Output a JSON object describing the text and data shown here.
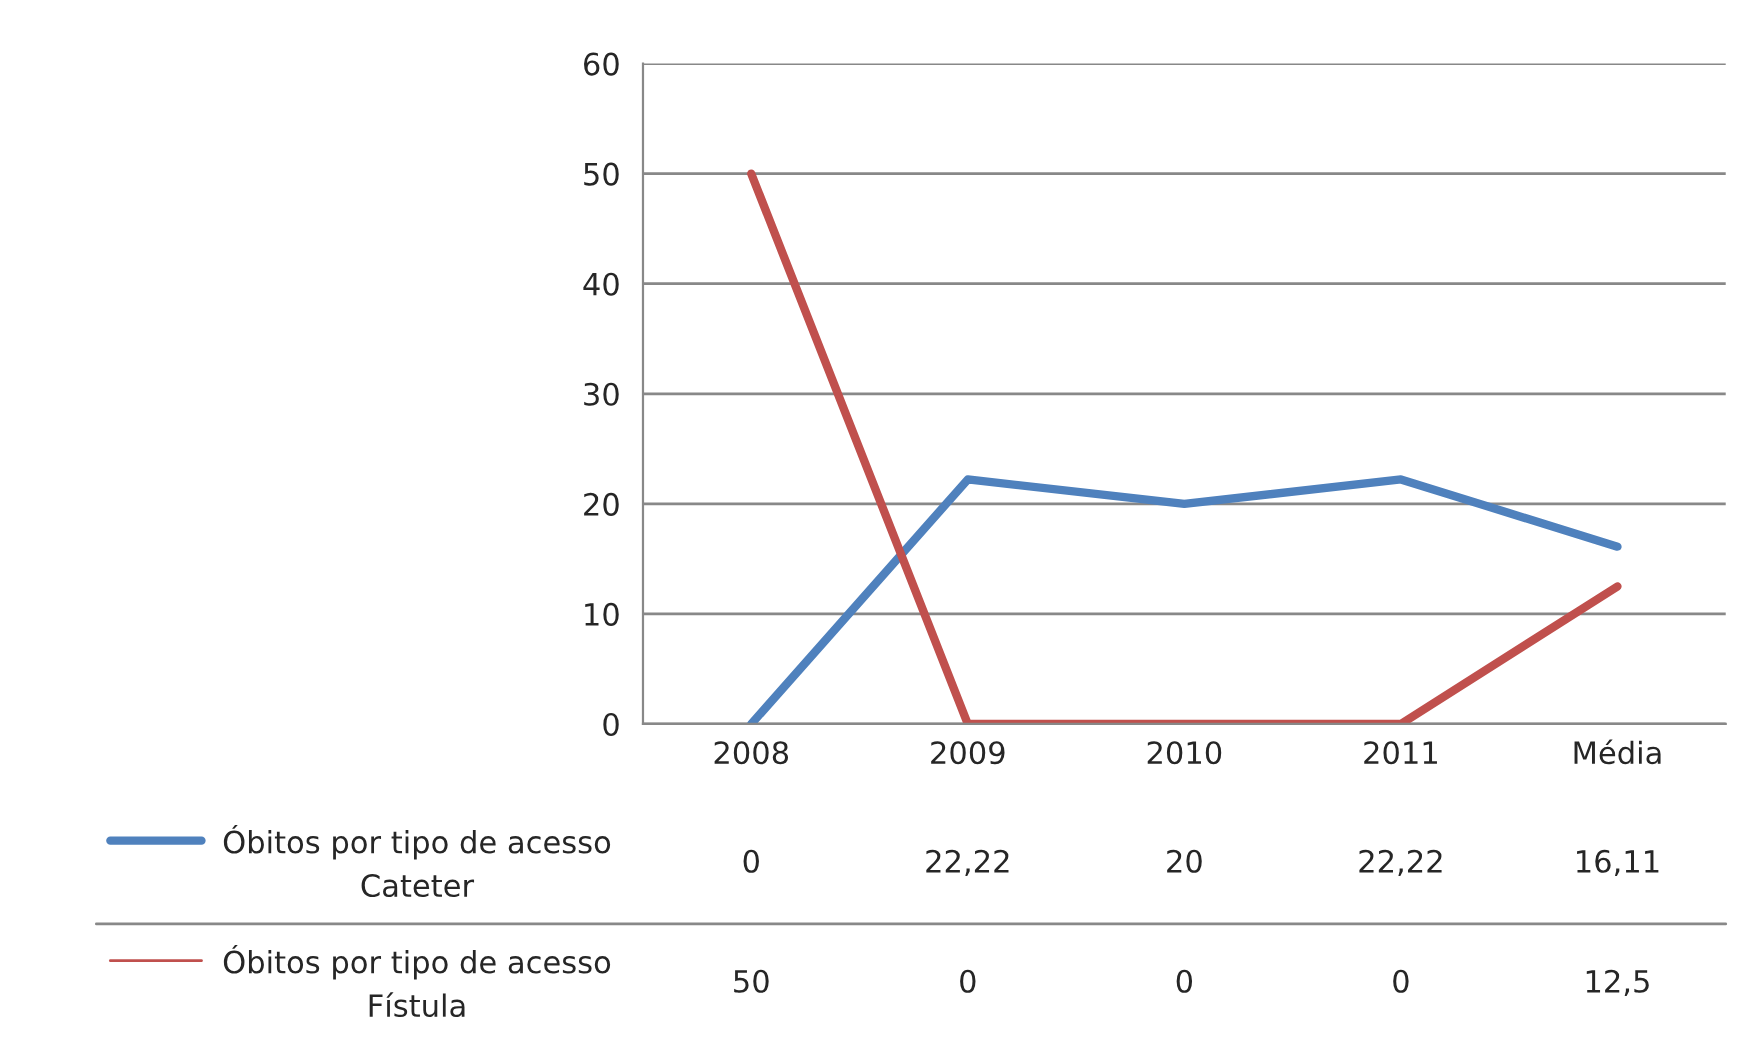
{
  "chart_data": {
    "type": "line",
    "categories": [
      "2008",
      "2009",
      "2010",
      "2011",
      "Média"
    ],
    "series": [
      {
        "name": "Óbitos por tipo de acesso Cateter",
        "color": "#4f81bd",
        "values": [
          0,
          22.22,
          20,
          22.22,
          16.11
        ],
        "value_labels": [
          "0",
          "22,22",
          "20",
          "22,22",
          "16,11"
        ]
      },
      {
        "name": "Óbitos por tipo de acesso Fístula",
        "color": "#c0504d",
        "values": [
          50,
          0,
          0,
          0,
          12.5
        ],
        "value_labels": [
          "50",
          "0",
          "0",
          "0",
          "12,5"
        ]
      }
    ],
    "ylim": [
      0,
      60
    ],
    "yticks": [
      0,
      10,
      20,
      30,
      40,
      50,
      60
    ],
    "grid": "y",
    "legend": "bottom",
    "marker": "none",
    "line_style": "solid"
  }
}
